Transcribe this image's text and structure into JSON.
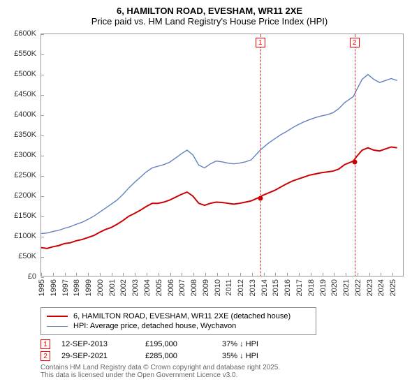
{
  "title": {
    "line1": "6, HAMILTON ROAD, EVESHAM, WR11 2XE",
    "line2": "Price paid vs. HM Land Registry's House Price Index (HPI)"
  },
  "chart": {
    "type": "line",
    "background_color": "#ffffff",
    "border_color": "#999999",
    "ylim": [
      0,
      600000
    ],
    "yticks": [
      {
        "v": 0,
        "label": "£0"
      },
      {
        "v": 50000,
        "label": "£50K"
      },
      {
        "v": 100000,
        "label": "£100K"
      },
      {
        "v": 150000,
        "label": "£150K"
      },
      {
        "v": 200000,
        "label": "£200K"
      },
      {
        "v": 250000,
        "label": "£250K"
      },
      {
        "v": 300000,
        "label": "£300K"
      },
      {
        "v": 350000,
        "label": "£350K"
      },
      {
        "v": 400000,
        "label": "£400K"
      },
      {
        "v": 450000,
        "label": "£450K"
      },
      {
        "v": 500000,
        "label": "£500K"
      },
      {
        "v": 550000,
        "label": "£550K"
      },
      {
        "v": 600000,
        "label": "£600K"
      }
    ],
    "xlim": [
      1995,
      2026
    ],
    "xticks": [
      1995,
      1996,
      1997,
      1998,
      1999,
      2000,
      2001,
      2002,
      2003,
      2004,
      2005,
      2006,
      2007,
      2008,
      2009,
      2010,
      2011,
      2012,
      2013,
      2014,
      2015,
      2016,
      2017,
      2018,
      2019,
      2020,
      2021,
      2022,
      2023,
      2024,
      2025
    ],
    "label_fontsize": 11,
    "series": [
      {
        "id": "price_paid",
        "label": "6, HAMILTON ROAD, EVESHAM, WR11 2XE (detached house)",
        "color": "#cc0000",
        "width": 2,
        "points": [
          [
            1995.0,
            70000
          ],
          [
            1995.5,
            68000
          ],
          [
            1996.0,
            72000
          ],
          [
            1996.5,
            75000
          ],
          [
            1997.0,
            80000
          ],
          [
            1997.5,
            82000
          ],
          [
            1998.0,
            87000
          ],
          [
            1998.5,
            90000
          ],
          [
            1999.0,
            95000
          ],
          [
            1999.5,
            100000
          ],
          [
            2000.0,
            108000
          ],
          [
            2000.5,
            115000
          ],
          [
            2001.0,
            120000
          ],
          [
            2001.5,
            128000
          ],
          [
            2002.0,
            137000
          ],
          [
            2002.5,
            148000
          ],
          [
            2003.0,
            155000
          ],
          [
            2003.5,
            163000
          ],
          [
            2004.0,
            172000
          ],
          [
            2004.5,
            180000
          ],
          [
            2005.0,
            180000
          ],
          [
            2005.5,
            183000
          ],
          [
            2006.0,
            188000
          ],
          [
            2006.5,
            195000
          ],
          [
            2007.0,
            202000
          ],
          [
            2007.5,
            208000
          ],
          [
            2008.0,
            198000
          ],
          [
            2008.5,
            180000
          ],
          [
            2009.0,
            175000
          ],
          [
            2009.5,
            180000
          ],
          [
            2010.0,
            183000
          ],
          [
            2010.5,
            182000
          ],
          [
            2011.0,
            180000
          ],
          [
            2011.5,
            178000
          ],
          [
            2012.0,
            180000
          ],
          [
            2012.5,
            183000
          ],
          [
            2013.0,
            186000
          ],
          [
            2013.7,
            195000
          ],
          [
            2014.0,
            200000
          ],
          [
            2014.5,
            206000
          ],
          [
            2015.0,
            212000
          ],
          [
            2015.5,
            220000
          ],
          [
            2016.0,
            228000
          ],
          [
            2016.5,
            235000
          ],
          [
            2017.0,
            240000
          ],
          [
            2017.5,
            245000
          ],
          [
            2018.0,
            250000
          ],
          [
            2018.5,
            253000
          ],
          [
            2019.0,
            256000
          ],
          [
            2019.5,
            258000
          ],
          [
            2020.0,
            260000
          ],
          [
            2020.5,
            265000
          ],
          [
            2021.0,
            276000
          ],
          [
            2021.75,
            285000
          ],
          [
            2022.0,
            295000
          ],
          [
            2022.5,
            312000
          ],
          [
            2023.0,
            318000
          ],
          [
            2023.5,
            312000
          ],
          [
            2024.0,
            310000
          ],
          [
            2024.5,
            315000
          ],
          [
            2025.0,
            320000
          ],
          [
            2025.5,
            318000
          ]
        ]
      },
      {
        "id": "hpi",
        "label": "HPI: Average price, detached house, Wychavon",
        "color": "#6080c0",
        "width": 1.4,
        "points": [
          [
            1995.0,
            105000
          ],
          [
            1995.5,
            106000
          ],
          [
            1996.0,
            110000
          ],
          [
            1996.5,
            113000
          ],
          [
            1997.0,
            118000
          ],
          [
            1997.5,
            122000
          ],
          [
            1998.0,
            128000
          ],
          [
            1998.5,
            133000
          ],
          [
            1999.0,
            140000
          ],
          [
            1999.5,
            148000
          ],
          [
            2000.0,
            158000
          ],
          [
            2000.5,
            168000
          ],
          [
            2001.0,
            178000
          ],
          [
            2001.5,
            188000
          ],
          [
            2002.0,
            202000
          ],
          [
            2002.5,
            218000
          ],
          [
            2003.0,
            232000
          ],
          [
            2003.5,
            245000
          ],
          [
            2004.0,
            258000
          ],
          [
            2004.5,
            268000
          ],
          [
            2005.0,
            272000
          ],
          [
            2005.5,
            276000
          ],
          [
            2006.0,
            282000
          ],
          [
            2006.5,
            292000
          ],
          [
            2007.0,
            303000
          ],
          [
            2007.5,
            312000
          ],
          [
            2008.0,
            300000
          ],
          [
            2008.5,
            275000
          ],
          [
            2009.0,
            268000
          ],
          [
            2009.5,
            278000
          ],
          [
            2010.0,
            285000
          ],
          [
            2010.5,
            283000
          ],
          [
            2011.0,
            280000
          ],
          [
            2011.5,
            278000
          ],
          [
            2012.0,
            280000
          ],
          [
            2012.5,
            283000
          ],
          [
            2013.0,
            288000
          ],
          [
            2013.7,
            310000
          ],
          [
            2014.0,
            318000
          ],
          [
            2014.5,
            330000
          ],
          [
            2015.0,
            340000
          ],
          [
            2015.5,
            350000
          ],
          [
            2016.0,
            358000
          ],
          [
            2016.5,
            367000
          ],
          [
            2017.0,
            375000
          ],
          [
            2017.5,
            382000
          ],
          [
            2018.0,
            388000
          ],
          [
            2018.5,
            393000
          ],
          [
            2019.0,
            397000
          ],
          [
            2019.5,
            400000
          ],
          [
            2020.0,
            405000
          ],
          [
            2020.5,
            415000
          ],
          [
            2021.0,
            430000
          ],
          [
            2021.75,
            445000
          ],
          [
            2022.0,
            460000
          ],
          [
            2022.5,
            488000
          ],
          [
            2023.0,
            500000
          ],
          [
            2023.5,
            488000
          ],
          [
            2024.0,
            480000
          ],
          [
            2024.5,
            485000
          ],
          [
            2025.0,
            490000
          ],
          [
            2025.5,
            485000
          ]
        ]
      }
    ],
    "markers": [
      {
        "n": "1",
        "x": 2013.7,
        "y": 195000,
        "date": "12-SEP-2013",
        "price": "£195,000",
        "diff": "37% ↓ HPI"
      },
      {
        "n": "2",
        "x": 2021.75,
        "y": 285000,
        "date": "29-SEP-2021",
        "price": "£285,000",
        "diff": "35% ↓ HPI"
      }
    ],
    "dot_color": "#cc0000"
  },
  "legend_border": "#888888",
  "footer": {
    "line1": "Contains HM Land Registry data © Crown copyright and database right 2025.",
    "line2": "This data is licensed under the Open Government Licence v3.0."
  }
}
